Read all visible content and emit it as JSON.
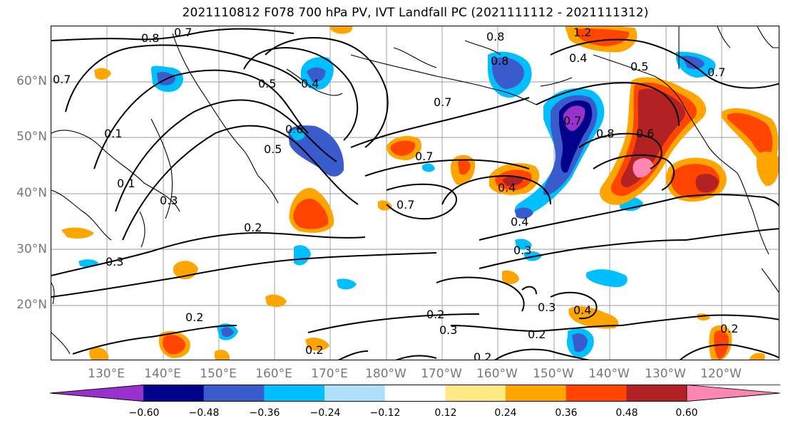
{
  "title": "2021110812 F078 700 hPa PV, IVT Landfall PC (2021111112 - 2021111312)",
  "lat_labels": [
    "60°N",
    "50°N",
    "40°N",
    "30°N",
    "20°N"
  ],
  "lon_labels": [
    "130°E",
    "140°E",
    "150°E",
    "160°E",
    "170°E",
    "180°W",
    "170°W",
    "160°W",
    "150°W",
    "140°W",
    "130°W",
    "120°W"
  ],
  "colorbar": {
    "colors": [
      "#9932CC",
      "#00008B",
      "#3A5BCC",
      "#00BFFF",
      "#ADE1FA",
      "#FFFFFF",
      "#FFE987",
      "#FFA500",
      "#FF4500",
      "#B22222",
      "#FF85B3"
    ],
    "ticks": [
      "−0.60",
      "−0.48",
      "−0.36",
      "−0.24",
      "−0.12",
      "0.12",
      "0.24",
      "0.36",
      "0.48",
      "0.60"
    ]
  },
  "contour_labels": [
    {
      "text": "0.8"
    },
    {
      "text": "0.7"
    },
    {
      "text": "0.7"
    },
    {
      "text": "0.5"
    },
    {
      "text": "0.4"
    },
    {
      "text": "0.6"
    },
    {
      "text": "0.5"
    },
    {
      "text": "0.8"
    },
    {
      "text": "0.8"
    },
    {
      "text": "1.2"
    },
    {
      "text": "0.4"
    },
    {
      "text": "0.5"
    },
    {
      "text": "0.7"
    },
    {
      "text": "0.7"
    },
    {
      "text": "0.7"
    },
    {
      "text": "0.7"
    },
    {
      "text": "0.8"
    },
    {
      "text": "0.6"
    },
    {
      "text": "0.4"
    },
    {
      "text": "0.7"
    },
    {
      "text": "0.2"
    },
    {
      "text": "0.4"
    },
    {
      "text": "0.3"
    },
    {
      "text": "0.3"
    },
    {
      "text": "0.3"
    },
    {
      "text": "0.2"
    },
    {
      "text": "0.3"
    },
    {
      "text": "0.2"
    },
    {
      "text": "0.3"
    },
    {
      "text": "0.4"
    },
    {
      "text": "0.2"
    },
    {
      "text": "0.2"
    },
    {
      "text": "0.2"
    },
    {
      "text": "0.2"
    },
    {
      "text": "0.1"
    },
    {
      "text": "0.1"
    }
  ]
}
